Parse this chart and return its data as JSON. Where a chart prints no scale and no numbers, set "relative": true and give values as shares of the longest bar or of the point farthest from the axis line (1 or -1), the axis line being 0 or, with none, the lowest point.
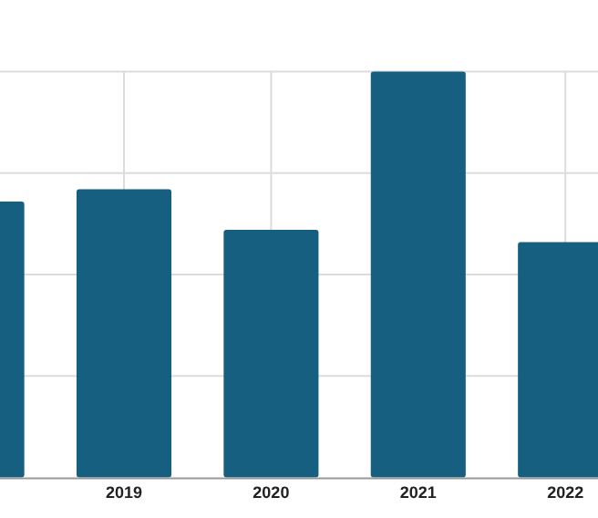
{
  "chart_data": {
    "type": "bar",
    "relative": true,
    "categories": [
      null,
      "2019",
      "2020",
      "2021",
      "2022"
    ],
    "values": [
      0.68,
      0.71,
      0.61,
      1,
      0.58
    ],
    "color": "#175f80",
    "grid": true
  }
}
